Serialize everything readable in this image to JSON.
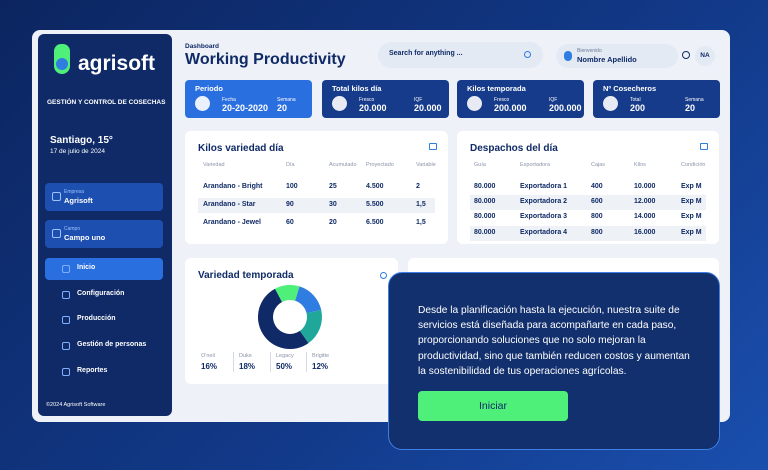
{
  "sidebar": {
    "logo": "agrisoft",
    "tagline": "GESTIÓN Y CONTROL DE COSECHAS",
    "weather": {
      "city": "Santiago, 15°",
      "date": "17 de julio de 2024"
    },
    "selectors": [
      {
        "label": "Empresa",
        "value": "Agrisoft"
      },
      {
        "label": "Campo",
        "value": "Campo uno"
      }
    ],
    "nav": [
      "Inicio",
      "Configuración",
      "Producción",
      "Gestión de personas",
      "Reportes"
    ],
    "footer": "©2024 Agrisoft Software"
  },
  "header": {
    "breadcrumb": "Dashboard",
    "title": "Working Productivity",
    "search_placeholder": "Search for anything ...",
    "user": {
      "greeting": "Bienvenido",
      "name": "Nombre Apellido",
      "initials": "NA"
    }
  },
  "stats": [
    {
      "title": "Periodo",
      "fields": [
        {
          "label": "Fecha",
          "value": "20-20-2020"
        },
        {
          "label": "Semana",
          "value": "20"
        }
      ]
    },
    {
      "title": "Total kilos día",
      "fields": [
        {
          "label": "Fresco",
          "value": "20.000"
        },
        {
          "label": "IQF",
          "value": "20.000"
        }
      ]
    },
    {
      "title": "Kilos temporada",
      "fields": [
        {
          "label": "Fresco",
          "value": "200.000"
        },
        {
          "label": "IQF",
          "value": "200.000"
        }
      ]
    },
    {
      "title": "Nº Cosecheros",
      "fields": [
        {
          "label": "Total",
          "value": "200"
        },
        {
          "label": "Semana",
          "value": "20"
        }
      ]
    }
  ],
  "kilos_variedad": {
    "title": "Kilos variedad día",
    "columns": [
      "Variedad",
      "Día",
      "Acumulado",
      "Proyectado",
      "Variable"
    ],
    "rows": [
      [
        "Arandano - Bright",
        "100",
        "25",
        "4.500",
        "2"
      ],
      [
        "Arandano - Star",
        "90",
        "30",
        "5.500",
        "1,5"
      ],
      [
        "Arandano - Jewel",
        "60",
        "20",
        "6.500",
        "1,5"
      ]
    ]
  },
  "despachos": {
    "title": "Despachos del día",
    "columns": [
      "Guía",
      "Exportadora",
      "Cajas",
      "Kilos",
      "Condición"
    ],
    "rows": [
      [
        "80.000",
        "Exportadora 1",
        "400",
        "10.000",
        "Exp M"
      ],
      [
        "80.000",
        "Exportadora 2",
        "600",
        "12.000",
        "Exp M"
      ],
      [
        "80.000",
        "Exportadora 3",
        "800",
        "14.000",
        "Exp M"
      ],
      [
        "80.000",
        "Exportadora 4",
        "800",
        "16.000",
        "Exp M"
      ]
    ]
  },
  "variedad_temporada": {
    "title": "Variedad temporada",
    "categories": [
      "O'neil",
      "Duke",
      "Legacy",
      "Brigitte"
    ],
    "values": [
      16,
      18,
      50,
      12
    ],
    "value_labels": [
      "16%",
      "18%",
      "50%",
      "12%"
    ],
    "colors": [
      "#2f7de1",
      "#1fa89a",
      "#0f2a66",
      "#4ef07a"
    ]
  },
  "promo": {
    "text": "Desde la planificación hasta la ejecución, nuestra suite de servicios está diseñada para acompañarte en cada paso, proporcionando soluciones que no solo mejoran la productividad, sino que también reducen costos y aumentan la sostenibilidad de tus operaciones agrícolas.",
    "button": "Iniciar"
  }
}
